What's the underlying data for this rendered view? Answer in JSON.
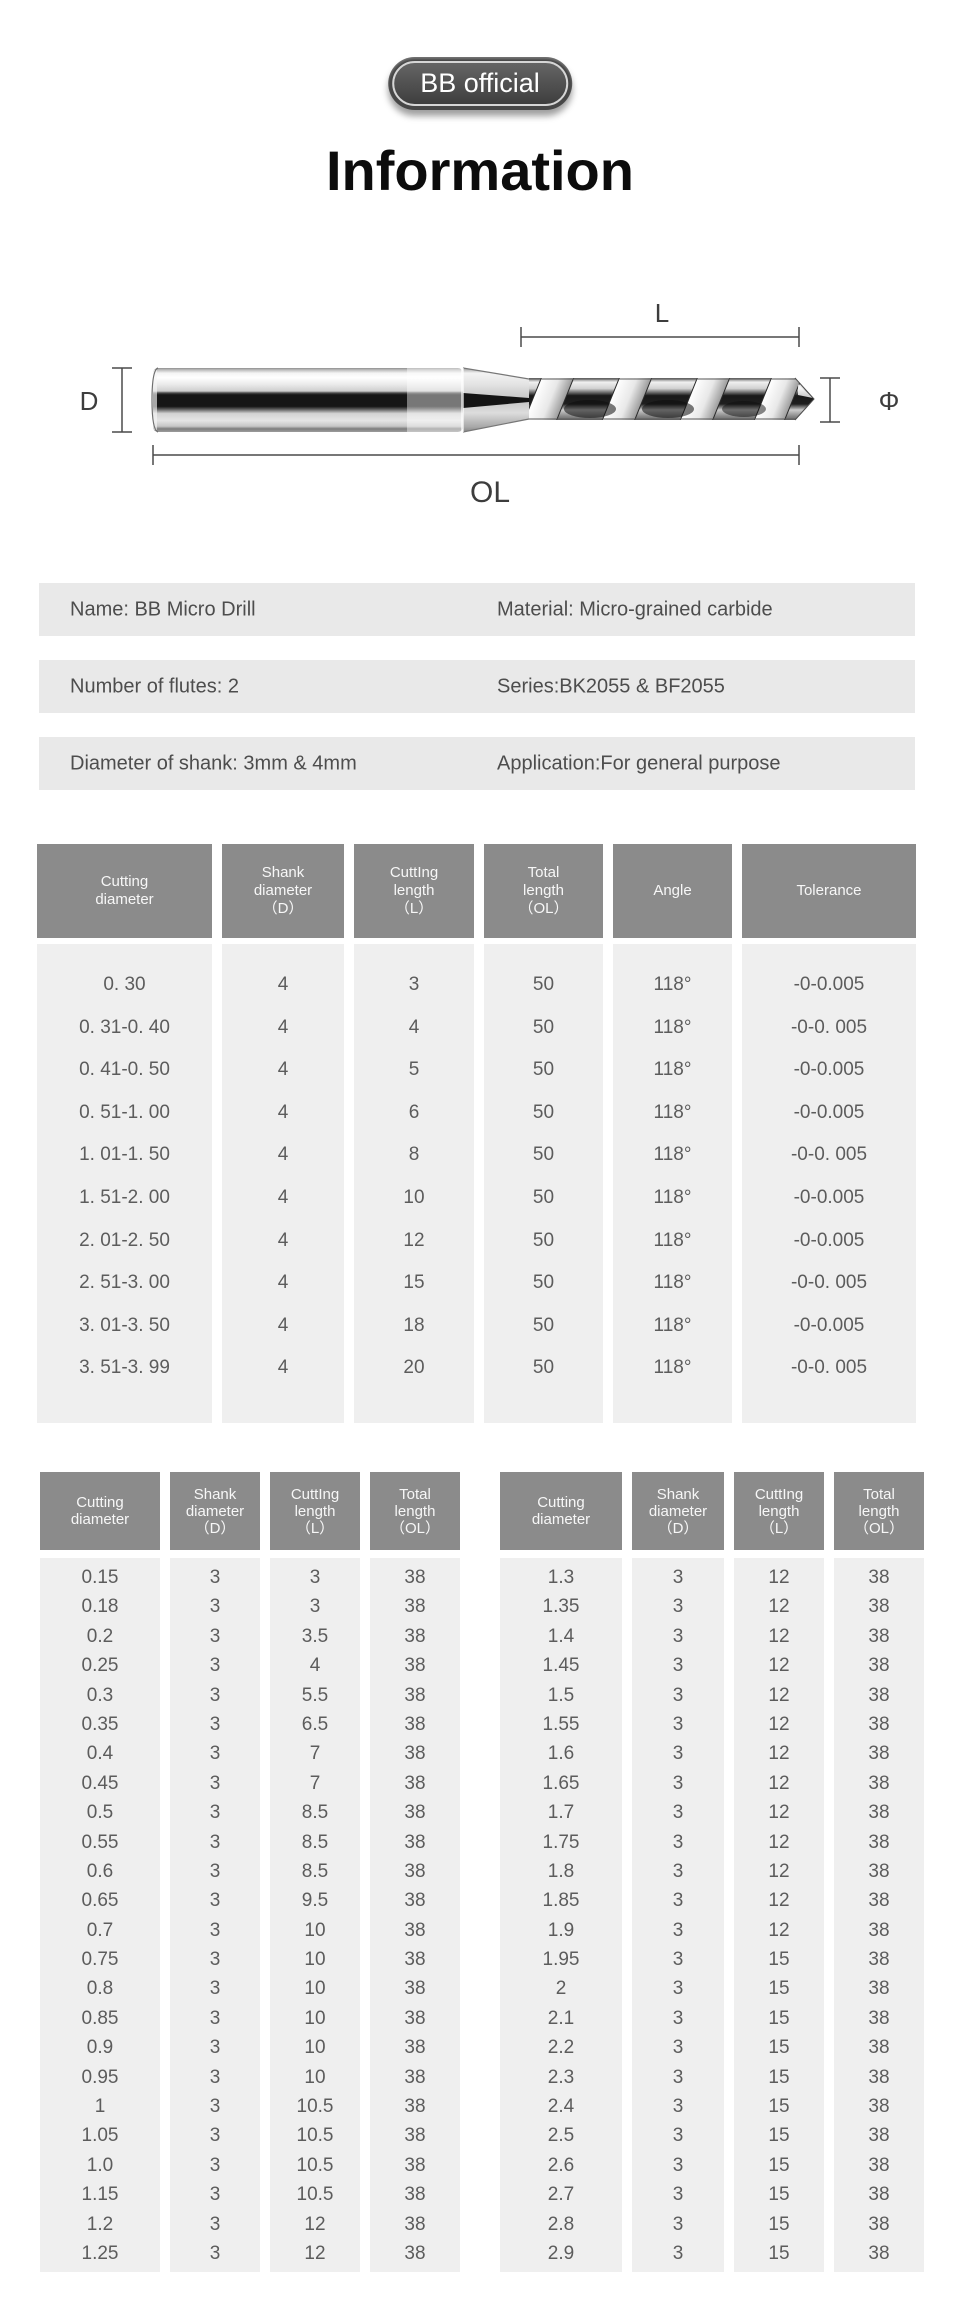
{
  "badge": {
    "label": "BB official"
  },
  "title": "Information",
  "diagram": {
    "labels": {
      "d": "D",
      "l": "L",
      "phi": "Φ",
      "ol": "OL"
    }
  },
  "specs": [
    {
      "left": "Name: BB Micro Drill",
      "right": "Material: Micro-grained carbide"
    },
    {
      "left": "Number of flutes: 2",
      "right": "Series:BK2055 & BF2055"
    },
    {
      "left": "Diameter of shank: 3mm & 4mm",
      "right": "Application:For general purpose"
    }
  ],
  "main_table": {
    "headers": [
      "Cutting\ndiameter",
      "Shank\ndiameter\n（D）",
      "CuttIng\nlength\n（L）",
      "Total\nlength\n（OL）",
      "Angle",
      "Tolerance"
    ],
    "rows": [
      [
        "0. 30",
        "4",
        "3",
        "50",
        "118°",
        "-0-0.005"
      ],
      [
        "0. 31-0. 40",
        "4",
        "4",
        "50",
        "118°",
        "-0-0. 005"
      ],
      [
        "0. 41-0. 50",
        "4",
        "5",
        "50",
        "118°",
        "-0-0.005"
      ],
      [
        "0. 51-1. 00",
        "4",
        "6",
        "50",
        "118°",
        "-0-0.005"
      ],
      [
        "1. 01-1. 50",
        "4",
        "8",
        "50",
        "118°",
        "-0-0. 005"
      ],
      [
        "1. 51-2. 00",
        "4",
        "10",
        "50",
        "118°",
        "-0-0.005"
      ],
      [
        "2. 01-2. 50",
        "4",
        "12",
        "50",
        "118°",
        "-0-0.005"
      ],
      [
        "2. 51-3. 00",
        "4",
        "15",
        "50",
        "118°",
        "-0-0. 005"
      ],
      [
        "3. 01-3. 50",
        "4",
        "18",
        "50",
        "118°",
        "-0-0.005"
      ],
      [
        "3. 51-3. 99",
        "4",
        "20",
        "50",
        "118°",
        "-0-0. 005"
      ]
    ]
  },
  "small_tables": [
    {
      "headers": [
        "Cutting\ndiameter",
        "Shank\ndiameter\n（D）",
        "CuttIng\nlength\n（L）",
        "Total\nlength\n（OL）"
      ],
      "rows": [
        [
          "0.15",
          "3",
          "3",
          "38"
        ],
        [
          "0.18",
          "3",
          "3",
          "38"
        ],
        [
          "0.2",
          "3",
          "3.5",
          "38"
        ],
        [
          "0.25",
          "3",
          "4",
          "38"
        ],
        [
          "0.3",
          "3",
          "5.5",
          "38"
        ],
        [
          "0.35",
          "3",
          "6.5",
          "38"
        ],
        [
          "0.4",
          "3",
          "7",
          "38"
        ],
        [
          "0.45",
          "3",
          "7",
          "38"
        ],
        [
          "0.5",
          "3",
          "8.5",
          "38"
        ],
        [
          "0.55",
          "3",
          "8.5",
          "38"
        ],
        [
          "0.6",
          "3",
          "8.5",
          "38"
        ],
        [
          "0.65",
          "3",
          "9.5",
          "38"
        ],
        [
          "0.7",
          "3",
          "10",
          "38"
        ],
        [
          "0.75",
          "3",
          "10",
          "38"
        ],
        [
          "0.8",
          "3",
          "10",
          "38"
        ],
        [
          "0.85",
          "3",
          "10",
          "38"
        ],
        [
          "0.9",
          "3",
          "10",
          "38"
        ],
        [
          "0.95",
          "3",
          "10",
          "38"
        ],
        [
          "1",
          "3",
          "10.5",
          "38"
        ],
        [
          "1.05",
          "3",
          "10.5",
          "38"
        ],
        [
          "1.0",
          "3",
          "10.5",
          "38"
        ],
        [
          "1.15",
          "3",
          "10.5",
          "38"
        ],
        [
          "1.2",
          "3",
          "12",
          "38"
        ],
        [
          "1.25",
          "3",
          "12",
          "38"
        ]
      ]
    },
    {
      "headers": [
        "Cutting\ndiameter",
        "Shank\ndiameter\n（D）",
        "CuttIng\nlength\n（L）",
        "Total\nlength\n（OL）"
      ],
      "rows": [
        [
          "1.3",
          "3",
          "12",
          "38"
        ],
        [
          "1.35",
          "3",
          "12",
          "38"
        ],
        [
          "1.4",
          "3",
          "12",
          "38"
        ],
        [
          "1.45",
          "3",
          "12",
          "38"
        ],
        [
          "1.5",
          "3",
          "12",
          "38"
        ],
        [
          "1.55",
          "3",
          "12",
          "38"
        ],
        [
          "1.6",
          "3",
          "12",
          "38"
        ],
        [
          "1.65",
          "3",
          "12",
          "38"
        ],
        [
          "1.7",
          "3",
          "12",
          "38"
        ],
        [
          "1.75",
          "3",
          "12",
          "38"
        ],
        [
          "1.8",
          "3",
          "12",
          "38"
        ],
        [
          "1.85",
          "3",
          "12",
          "38"
        ],
        [
          "1.9",
          "3",
          "12",
          "38"
        ],
        [
          "1.95",
          "3",
          "15",
          "38"
        ],
        [
          "2",
          "3",
          "15",
          "38"
        ],
        [
          "2.1",
          "3",
          "15",
          "38"
        ],
        [
          "2.2",
          "3",
          "15",
          "38"
        ],
        [
          "2.3",
          "3",
          "15",
          "38"
        ],
        [
          "2.4",
          "3",
          "15",
          "38"
        ],
        [
          "2.5",
          "3",
          "15",
          "38"
        ],
        [
          "2.6",
          "3",
          "15",
          "38"
        ],
        [
          "2.7",
          "3",
          "15",
          "38"
        ],
        [
          "2.8",
          "3",
          "15",
          "38"
        ],
        [
          "2.9",
          "3",
          "15",
          "38"
        ]
      ]
    }
  ],
  "colors": {
    "header_bg": "#8b8b8b",
    "cell_bg": "#efefef",
    "bar_bg": "#e9e9e9",
    "badge_bg": "#474747",
    "bar_text": "#4d4d4d",
    "cell_text": "#5c5c5c",
    "title_text": "#0c0c0c"
  }
}
